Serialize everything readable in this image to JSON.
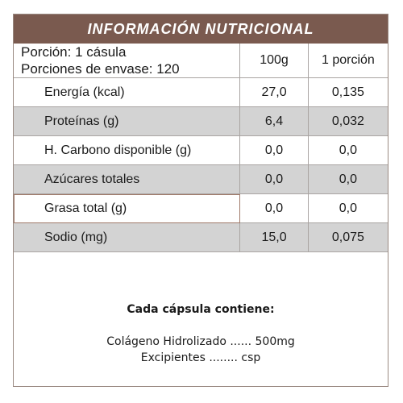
{
  "title": "INFORMACIÓN NUTRICIONAL",
  "serving": {
    "line1": "Porción: 1 cásula",
    "line2": "Porciones de envase: 120",
    "col_100g": "100g",
    "col_portion": "1 porción"
  },
  "rows": [
    {
      "name": "Energía (kcal)",
      "per100": "27,0",
      "perPortion": "0,135"
    },
    {
      "name": "Proteínas (g)",
      "per100": "6,4",
      "perPortion": "0,032"
    },
    {
      "name": "H. Carbono disponible (g)",
      "per100": "0,0",
      "perPortion": "0,0"
    },
    {
      "name": "Azúcares totales",
      "per100": "0,0",
      "perPortion": "0,0"
    },
    {
      "name": "Grasa total (g)",
      "per100": "0,0",
      "perPortion": "0,0"
    },
    {
      "name": "Sodio (mg)",
      "per100": "15,0",
      "perPortion": "0,075"
    }
  ],
  "footer": {
    "heading": "Cada cápsula contiene:",
    "ingredients": [
      "Colágeno Hidrolizado ...... 500mg",
      "Excipientes ........ csp"
    ]
  },
  "colors": {
    "title_bar": "#7a5a4f",
    "row_shade": "#d3d3d3",
    "border": "#a9a4a2"
  }
}
